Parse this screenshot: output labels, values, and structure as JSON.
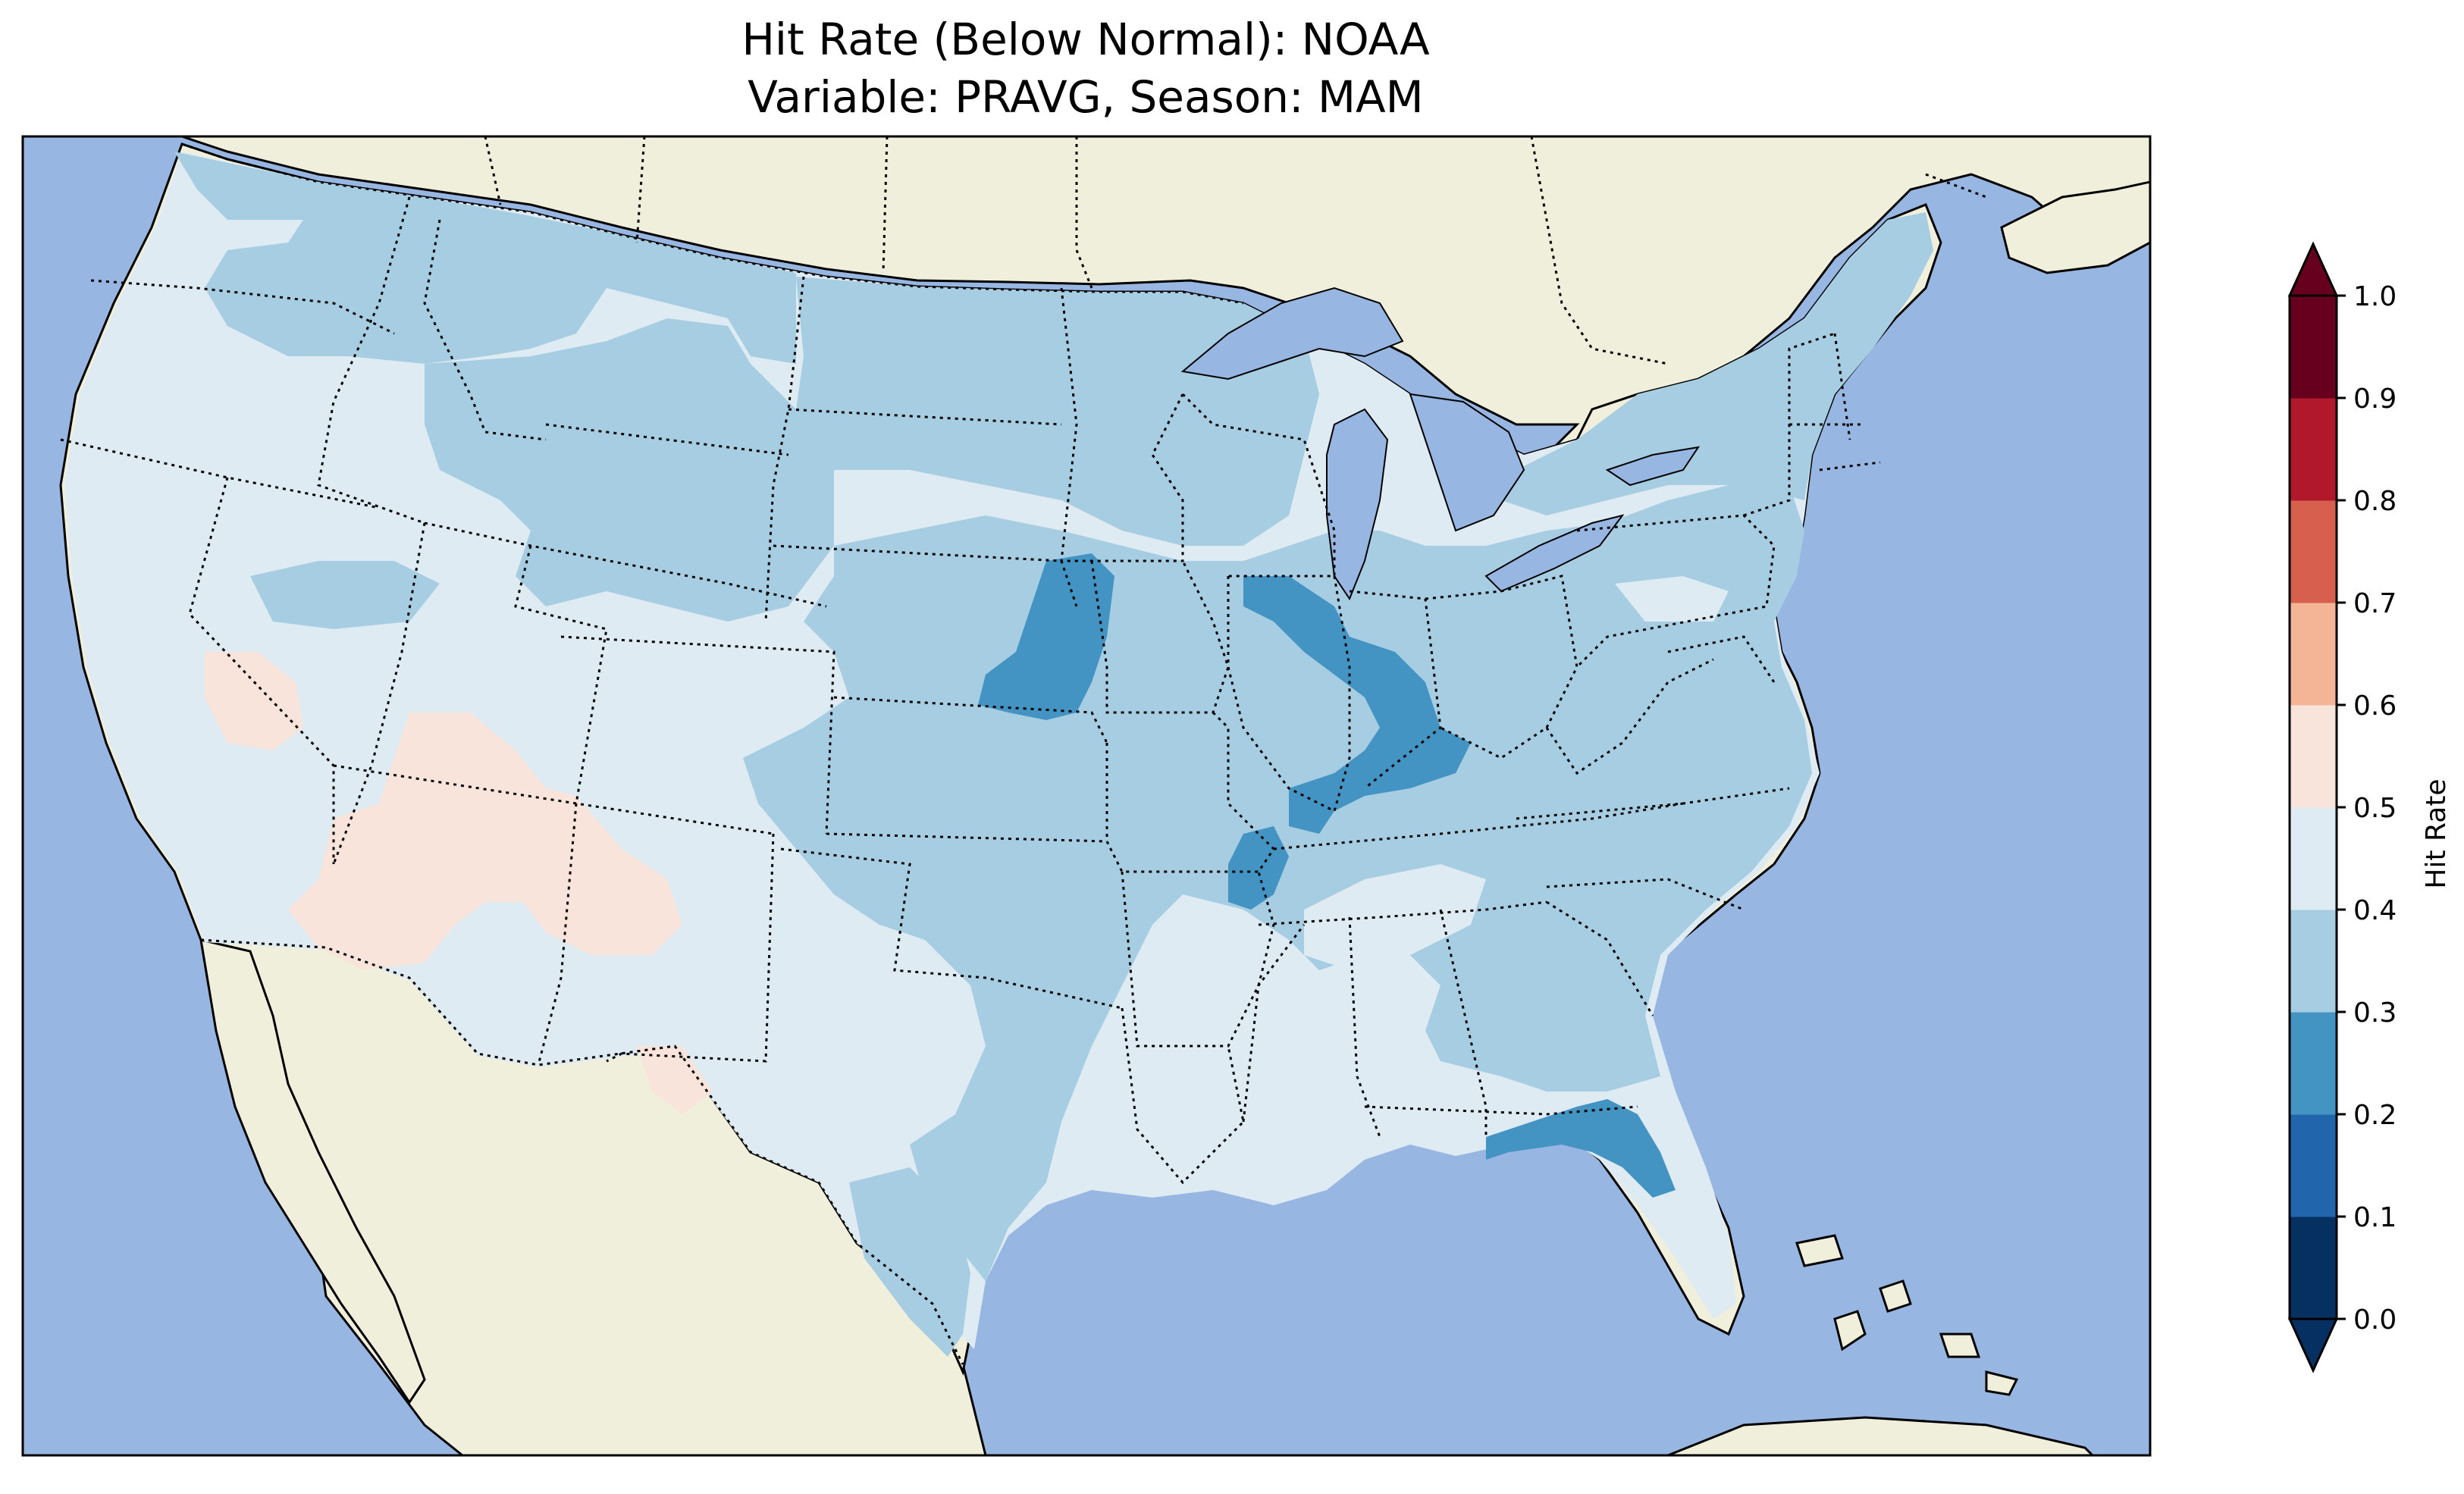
{
  "title": {
    "line1": "Hit Rate (Below Normal): NOAA",
    "line2": "Variable: PRAVG, Season: MAM"
  },
  "map": {
    "region": "Contiguous United States",
    "projection": "conic",
    "colors": {
      "ocean": "#97b6e1",
      "land": "#efefdb",
      "coast": "#000000"
    },
    "borders": [
      "coastline",
      "state borders (dotted)",
      "country borders (dotted)"
    ],
    "field_note": "Hit rate per grid cell; mostly 0.3–0.5 across the US, patches 0.2–0.3 in the Midwest, Iowa/Nebraska and north Florida, patches 0.5–0.6 in Nevada/Arizona/New Mexico"
  },
  "colorbar": {
    "label": "Hit Rate",
    "ticks": [
      "0.0",
      "0.1",
      "0.2",
      "0.3",
      "0.4",
      "0.5",
      "0.6",
      "0.7",
      "0.8",
      "0.9",
      "1.0"
    ],
    "extend": "both",
    "bins": [
      {
        "range": [
          0.0,
          0.1
        ],
        "color": "#053061"
      },
      {
        "range": [
          0.1,
          0.2
        ],
        "color": "#2166ac"
      },
      {
        "range": [
          0.2,
          0.3
        ],
        "color": "#4393c3"
      },
      {
        "range": [
          0.3,
          0.4
        ],
        "color": "#a6cde2"
      },
      {
        "range": [
          0.4,
          0.5
        ],
        "color": "#deebf2"
      },
      {
        "range": [
          0.5,
          0.6
        ],
        "color": "#f8e4da"
      },
      {
        "range": [
          0.6,
          0.7
        ],
        "color": "#f4b597"
      },
      {
        "range": [
          0.7,
          0.8
        ],
        "color": "#d6604d"
      },
      {
        "range": [
          0.8,
          0.9
        ],
        "color": "#b2182b"
      },
      {
        "range": [
          0.9,
          1.0
        ],
        "color": "#67001f"
      }
    ]
  }
}
